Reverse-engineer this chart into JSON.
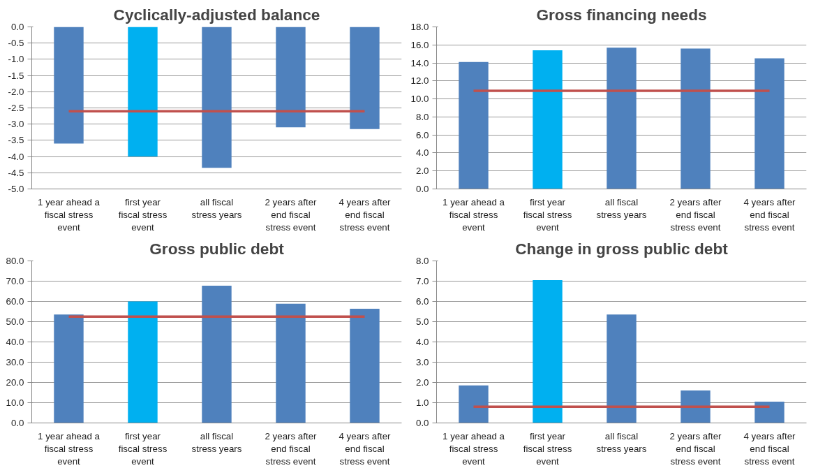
{
  "chart_data": [
    {
      "type": "bar",
      "title": "Cyclically-adjusted balance",
      "categories": [
        "1 year ahead a fiscal stress event",
        "first year fiscal stress event",
        "all fiscal stress years",
        "2 years after end fiscal stress event",
        "4 years after end fiscal stress event"
      ],
      "ylim": [
        -5,
        0
      ],
      "yticks": [
        {
          "value": -5,
          "label": "-5.0"
        },
        {
          "value": -4.5,
          "label": "-4.5"
        },
        {
          "value": -4,
          "label": "-4.0"
        },
        {
          "value": -3.5,
          "label": "-3.5"
        },
        {
          "value": -3,
          "label": "-3.0"
        },
        {
          "value": -2.5,
          "label": "-2.5"
        },
        {
          "value": -2,
          "label": "-2.0"
        },
        {
          "value": -1.5,
          "label": "-1.5"
        },
        {
          "value": -1,
          "label": "-1.0"
        },
        {
          "value": -0.5,
          "label": "-0.5"
        },
        {
          "value": 0,
          "label": "0.0"
        }
      ],
      "grid": "y",
      "series": [
        {
          "colors": [
            "#4f81bd",
            "#00b0f0",
            "#4f81bd",
            "#4f81bd",
            "#4f81bd"
          ],
          "values": [
            -3.6,
            -4.0,
            -4.35,
            -3.1,
            -3.15
          ]
        },
        {
          "type": "line",
          "color": "#c0504d",
          "values": [
            -2.6,
            -2.6,
            -2.6,
            -2.6,
            -2.6
          ]
        }
      ]
    },
    {
      "type": "bar",
      "title": "Gross financing needs",
      "categories": [
        "1 year ahead a fiscal stress event",
        "first year fiscal stress event",
        "all fiscal stress years",
        "2 years after end fiscal stress event",
        "4 years after end fiscal stress event"
      ],
      "ylim": [
        0,
        18
      ],
      "yticks": [
        {
          "value": 0,
          "label": "0.0"
        },
        {
          "value": 2,
          "label": "2.0"
        },
        {
          "value": 4,
          "label": "4.0"
        },
        {
          "value": 6,
          "label": "6.0"
        },
        {
          "value": 8,
          "label": "8.0"
        },
        {
          "value": 10,
          "label": "10.0"
        },
        {
          "value": 12,
          "label": "12.0"
        },
        {
          "value": 14,
          "label": "14.0"
        },
        {
          "value": 16,
          "label": "16.0"
        },
        {
          "value": 18,
          "label": "18.0"
        }
      ],
      "grid": "y",
      "series": [
        {
          "colors": [
            "#4f81bd",
            "#00b0f0",
            "#4f81bd",
            "#4f81bd",
            "#4f81bd"
          ],
          "values": [
            14.1,
            15.4,
            15.7,
            15.6,
            14.5
          ]
        },
        {
          "type": "line",
          "color": "#c0504d",
          "values": [
            10.9,
            10.9,
            10.9,
            10.9,
            10.9
          ]
        }
      ]
    },
    {
      "type": "bar",
      "title": "Gross public debt",
      "categories": [
        "1 year ahead a fiscal stress event",
        "first year fiscal stress event",
        "all fiscal stress years",
        "2 years after end fiscal stress event",
        "4 years after end fiscal stress event"
      ],
      "ylim": [
        0,
        80
      ],
      "yticks": [
        {
          "value": 0,
          "label": "0.0"
        },
        {
          "value": 10,
          "label": "10.0"
        },
        {
          "value": 20,
          "label": "20.0"
        },
        {
          "value": 30,
          "label": "30.0"
        },
        {
          "value": 40,
          "label": "40.0"
        },
        {
          "value": 50,
          "label": "50.0"
        },
        {
          "value": 60,
          "label": "60.0"
        },
        {
          "value": 70,
          "label": "70.0"
        },
        {
          "value": 80,
          "label": "80.0"
        }
      ],
      "grid": "y",
      "series": [
        {
          "colors": [
            "#4f81bd",
            "#00b0f0",
            "#4f81bd",
            "#4f81bd",
            "#4f81bd"
          ],
          "values": [
            53.5,
            60.0,
            67.8,
            58.9,
            56.4
          ]
        },
        {
          "type": "line",
          "color": "#c0504d",
          "values": [
            52.5,
            52.5,
            52.5,
            52.5,
            52.5
          ]
        }
      ]
    },
    {
      "type": "bar",
      "title": "Change in gross public debt",
      "categories": [
        "1 year ahead a fiscal stress event",
        "first year fiscal stress event",
        "all fiscal stress years",
        "2 years after end fiscal stress event",
        "4 years after end fiscal stress event"
      ],
      "ylim": [
        0,
        8
      ],
      "yticks": [
        {
          "value": 0,
          "label": "0.0"
        },
        {
          "value": 1,
          "label": "1.0"
        },
        {
          "value": 2,
          "label": "2.0"
        },
        {
          "value": 3,
          "label": "3.0"
        },
        {
          "value": 4,
          "label": "4.0"
        },
        {
          "value": 5,
          "label": "5.0"
        },
        {
          "value": 6,
          "label": "6.0"
        },
        {
          "value": 7,
          "label": "7.0"
        },
        {
          "value": 8,
          "label": "8.0"
        }
      ],
      "grid": "y",
      "series": [
        {
          "colors": [
            "#4f81bd",
            "#00b0f0",
            "#4f81bd",
            "#4f81bd",
            "#4f81bd"
          ],
          "values": [
            1.85,
            7.05,
            5.35,
            1.6,
            1.05
          ]
        },
        {
          "type": "line",
          "color": "#c0504d",
          "values": [
            0.8,
            0.8,
            0.8,
            0.8,
            0.8
          ]
        }
      ]
    }
  ]
}
